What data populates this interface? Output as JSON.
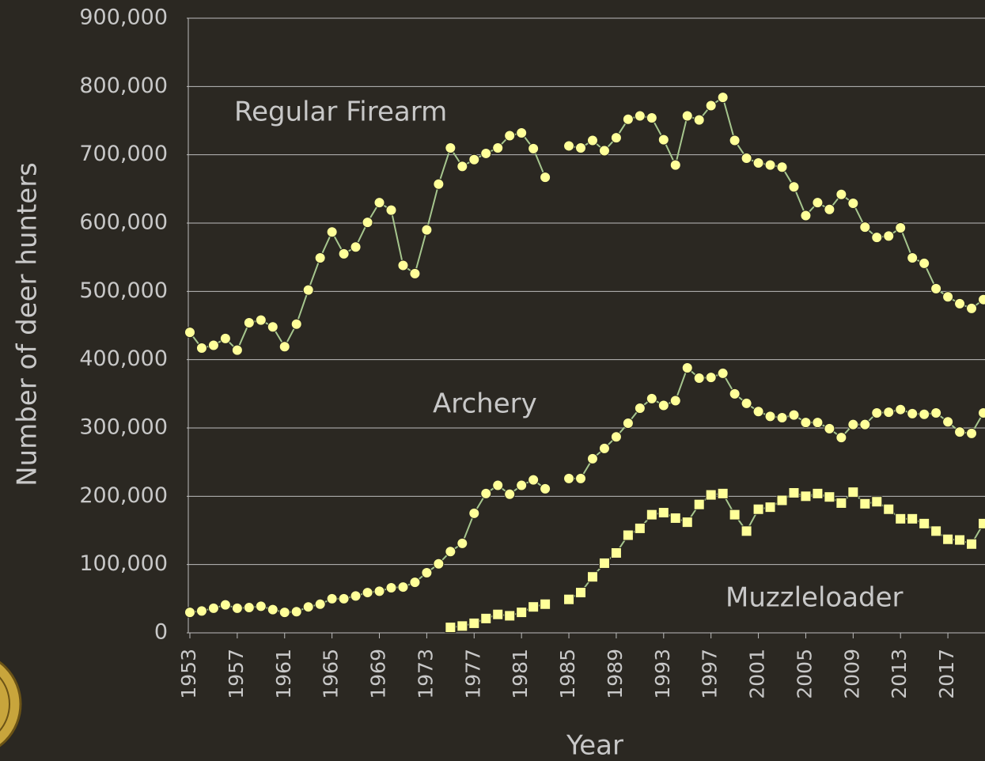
{
  "chart_data": {
    "type": "line",
    "x_label": "Year",
    "y_label": "Number of deer hunters",
    "x": [
      1953,
      1954,
      1955,
      1956,
      1957,
      1958,
      1959,
      1960,
      1961,
      1962,
      1963,
      1964,
      1965,
      1966,
      1967,
      1968,
      1969,
      1970,
      1971,
      1972,
      1973,
      1974,
      1975,
      1976,
      1977,
      1978,
      1979,
      1980,
      1981,
      1982,
      1983,
      1984,
      1985,
      1986,
      1987,
      1988,
      1989,
      1990,
      1991,
      1992,
      1993,
      1994,
      1995,
      1996,
      1997,
      1998,
      1999,
      2000,
      2001,
      2002,
      2003,
      2004,
      2005,
      2006,
      2007,
      2008,
      2009,
      2010,
      2011,
      2012,
      2013,
      2014,
      2015,
      2016,
      2017,
      2018,
      2019,
      2020
    ],
    "xlim": [
      1953,
      2020
    ],
    "xticks": [
      1953,
      1957,
      1961,
      1965,
      1969,
      1973,
      1977,
      1981,
      1985,
      1989,
      1993,
      1997,
      2001,
      2005,
      2009,
      2013,
      2017
    ],
    "ylim": [
      0,
      900000
    ],
    "yticks": [
      0,
      {
        "value": 100000,
        "label": "100,000"
      },
      {
        "value": 200000,
        "label": "200,000"
      },
      {
        "value": 300000,
        "label": "300,000"
      },
      {
        "value": 400000,
        "label": "400,000"
      },
      {
        "value": 500000,
        "label": "500,000"
      },
      {
        "value": 600000,
        "label": "600,000"
      },
      {
        "value": 700000,
        "label": "700,000"
      },
      {
        "value": 800000,
        "label": "800,000"
      },
      {
        "value": 900000,
        "label": "900,000"
      }
    ],
    "grid": true,
    "line_color": "#a6c68e",
    "series": [
      {
        "name": "Regular Firearm",
        "color": "#ffff99",
        "marker": "circle",
        "values": [
          440000,
          417000,
          421000,
          431000,
          414000,
          454000,
          458000,
          448000,
          419000,
          452000,
          502000,
          549000,
          587000,
          555000,
          565000,
          601000,
          630000,
          619000,
          538000,
          526000,
          590000,
          657000,
          710000,
          683000,
          693000,
          702000,
          710000,
          728000,
          732000,
          709000,
          667000,
          null,
          713000,
          710000,
          721000,
          706000,
          725000,
          752000,
          757000,
          754000,
          722000,
          685000,
          757000,
          751000,
          772000,
          784000,
          721000,
          695000,
          688000,
          685000,
          682000,
          653000,
          611000,
          630000,
          620000,
          642000,
          629000,
          594000,
          579000,
          581000,
          593000,
          549000,
          541000,
          504000,
          492000,
          482000,
          475000,
          488000
        ]
      },
      {
        "name": "Archery",
        "color": "#ffff99",
        "marker": "circle",
        "values": [
          30000,
          32000,
          36000,
          41000,
          36000,
          37000,
          39000,
          34000,
          30000,
          31000,
          38000,
          42000,
          50000,
          50000,
          54000,
          59000,
          61000,
          66000,
          67000,
          74000,
          88000,
          101000,
          119000,
          131000,
          175000,
          204000,
          216000,
          203000,
          216000,
          224000,
          211000,
          null,
          226000,
          226000,
          255000,
          270000,
          287000,
          307000,
          329000,
          343000,
          333000,
          340000,
          388000,
          373000,
          374000,
          380000,
          350000,
          336000,
          324000,
          317000,
          315000,
          319000,
          308000,
          308000,
          299000,
          286000,
          305000,
          305000,
          322000,
          323000,
          327000,
          321000,
          320000,
          322000,
          309000,
          294000,
          292000,
          322000
        ]
      },
      {
        "name": "Muzzleloader",
        "color": "#ffff99",
        "marker": "square",
        "values": [
          null,
          null,
          null,
          null,
          null,
          null,
          null,
          null,
          null,
          null,
          null,
          null,
          null,
          null,
          null,
          null,
          null,
          null,
          null,
          null,
          null,
          null,
          8000,
          10000,
          14000,
          21000,
          27000,
          25000,
          30000,
          38000,
          42000,
          null,
          49000,
          59000,
          82000,
          102000,
          117000,
          143000,
          153000,
          173000,
          176000,
          168000,
          162000,
          188000,
          202000,
          204000,
          173000,
          149000,
          181000,
          184000,
          194000,
          205000,
          200000,
          204000,
          199000,
          190000,
          206000,
          189000,
          192000,
          181000,
          167000,
          167000,
          160000,
          149000,
          137000,
          136000,
          130000,
          160000
        ]
      }
    ]
  }
}
